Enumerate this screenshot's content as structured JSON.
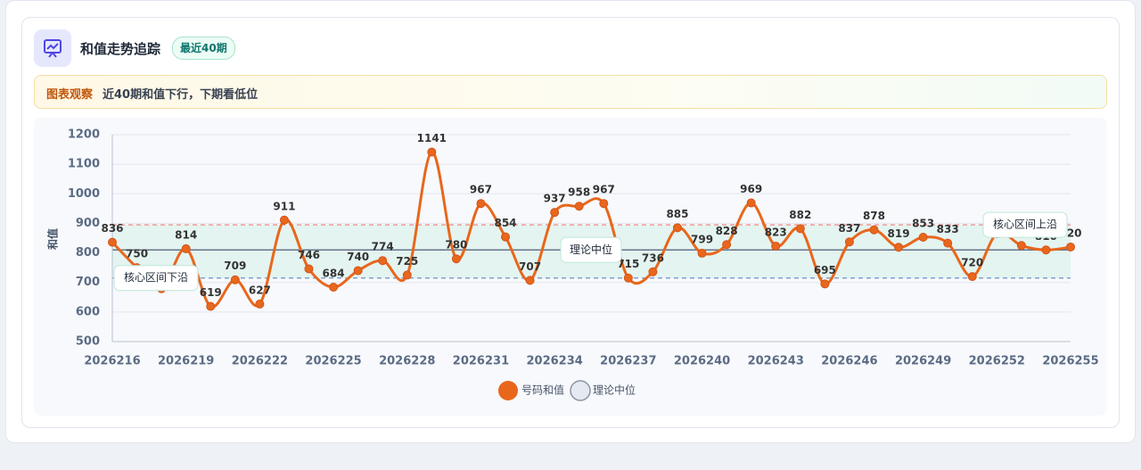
{
  "header": {
    "title": "和值走势追踪",
    "badge": "最近40期"
  },
  "insight": {
    "label": "图表观察",
    "text": "近40期和值下行，下期看低位"
  },
  "chart_data": {
    "type": "line",
    "y_label": "和值",
    "categories": [
      "2026216",
      null,
      null,
      "2026219",
      null,
      null,
      "2026222",
      null,
      null,
      "2026225",
      null,
      null,
      "2026228",
      null,
      null,
      "2026231",
      null,
      null,
      "2026234",
      null,
      null,
      "2026237",
      null,
      null,
      "2026240",
      null,
      null,
      "2026243",
      null,
      null,
      "2026246",
      null,
      null,
      "2026249",
      null,
      null,
      "2026252",
      null,
      null,
      "2026255"
    ],
    "series": [
      {
        "name": "号码和值",
        "color": "#e8671c",
        "values": [
          836,
          750,
          679,
          814,
          619,
          709,
          627,
          911,
          746,
          684,
          740,
          774,
          725,
          1141,
          780,
          967,
          854,
          707,
          937,
          958,
          967,
          715,
          736,
          885,
          799,
          828,
          969,
          823,
          882,
          695,
          837,
          878,
          819,
          853,
          833,
          720,
          865,
          825,
          810,
          820
        ]
      }
    ],
    "reference_lines": [
      {
        "name": "理论中位",
        "value": 810,
        "color": "#64748b"
      },
      {
        "name": "核心区间上沿",
        "value": 895,
        "color": "#ef7b7b"
      },
      {
        "name": "核心区间下沿",
        "value": 715,
        "color": "#6f8fc9"
      }
    ],
    "ylim": [
      500,
      1200
    ],
    "yticks": [
      500,
      600,
      700,
      800,
      900,
      1000,
      1100,
      1200
    ],
    "grid": true
  }
}
